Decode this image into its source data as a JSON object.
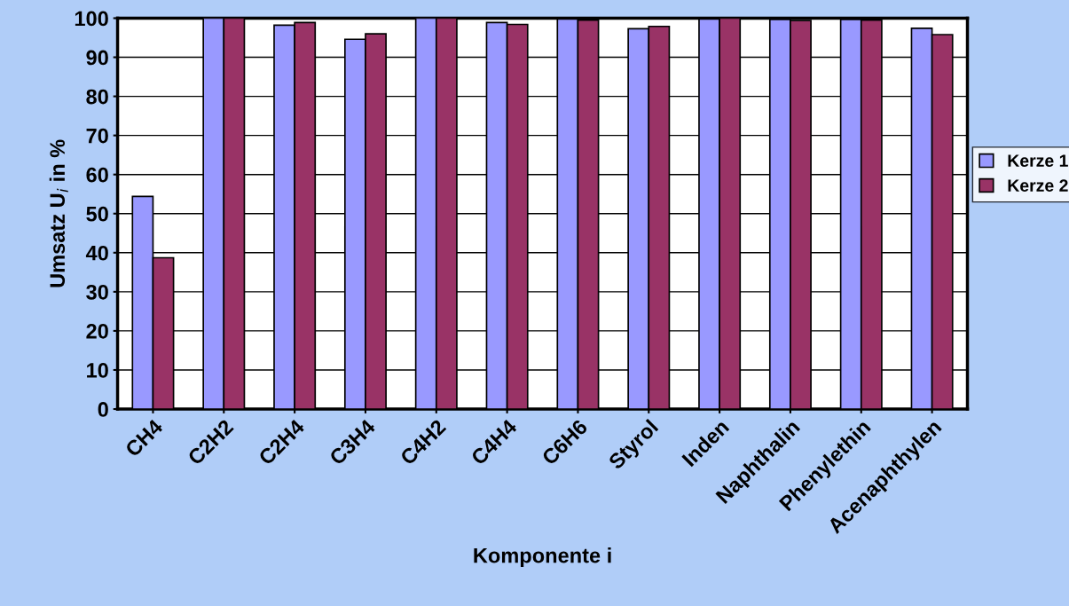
{
  "chart_data": {
    "type": "bar",
    "xlabel": "Komponente i",
    "ylabel": "Umsatz U$_{i}$ in %",
    "categories": [
      "CH4",
      "C2H2",
      "C2H4",
      "C3H4",
      "C4H2",
      "C4H4",
      "C6H6",
      "Styrol",
      "Inden",
      "Naphthalin",
      "Phenylethin",
      "Acenaphthylen"
    ],
    "series": [
      {
        "name": "Kerze 1",
        "color": "#9999ff",
        "values": [
          54.4,
          100,
          98.2,
          94.6,
          100,
          98.9,
          99.8,
          97.3,
          99.8,
          99.7,
          99.7,
          97.4
        ]
      },
      {
        "name": "Kerze 2",
        "color": "#993366",
        "values": [
          38.7,
          100,
          98.9,
          96.0,
          100,
          98.4,
          99.5,
          97.9,
          100,
          99.4,
          99.5,
          95.8
        ]
      }
    ],
    "ylim": [
      0,
      100
    ],
    "yticks": [
      0,
      10,
      20,
      30,
      40,
      50,
      60,
      70,
      80,
      90,
      100
    ],
    "grid": "y",
    "legend": "right"
  }
}
